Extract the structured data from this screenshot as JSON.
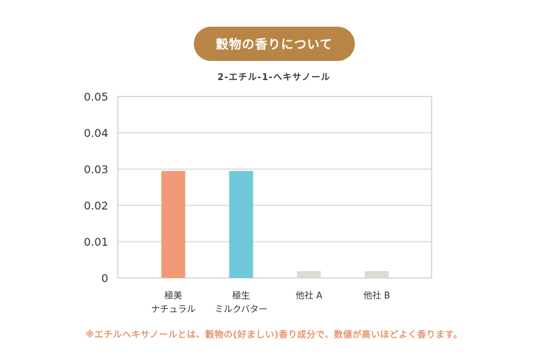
{
  "header": {
    "title": "穀物の香りについて"
  },
  "chart_data": {
    "type": "bar",
    "title": "2-エチル-1-ヘキサノール",
    "xlabel": "",
    "ylabel": "",
    "ylim": [
      0,
      0.05
    ],
    "yticks": [
      "0",
      "0.01",
      "0.02",
      "0.03",
      "0.04",
      "0.05"
    ],
    "grid": true,
    "categories": [
      {
        "line1": "極美",
        "line2": "ナチュラル"
      },
      {
        "line1": "極生",
        "line2": "ミルクバター"
      },
      {
        "line1": "他社 A",
        "line2": ""
      },
      {
        "line1": "他社 B",
        "line2": ""
      }
    ],
    "values": [
      0.0295,
      0.0295,
      0.0019,
      0.0019
    ],
    "colors": [
      "#f29a78",
      "#6fc9db",
      "#dcdcd6",
      "#dcdcd6"
    ]
  },
  "footnote": "※エチルヘキサノールとは、穀物の(好ましい)香り成分で、数値が高いほどよく香ります。"
}
